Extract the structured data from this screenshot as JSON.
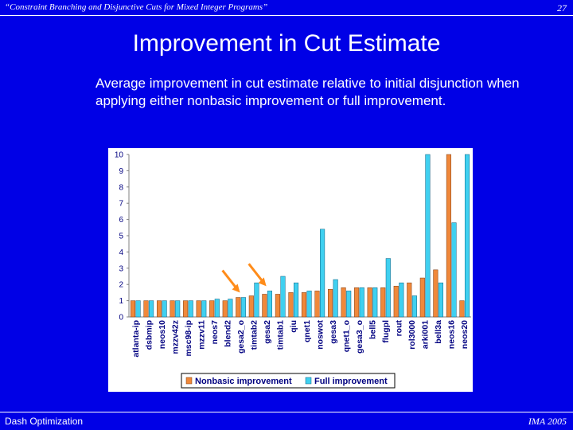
{
  "header": {
    "left": "“Constraint Branching and Disjunctive Cuts for Mixed Integer Programs”",
    "page_number": "27"
  },
  "title": "Improvement in Cut Estimate",
  "caption": "Average improvement in cut estimate relative to initial disjunction when applying either nonbasic improvement or full improvement.",
  "footer": {
    "left": "Dash Optimization",
    "right": "IMA 2005"
  },
  "colors": {
    "background": "#0000e6",
    "nonbasic": "#f0883a",
    "full": "#3fd0f0",
    "arrow": "#ff8c1a"
  },
  "chart_data": {
    "type": "bar",
    "categories": [
      "atlanta-ip",
      "dsbmip",
      "neos10",
      "mzzv42z",
      "msc98-ip",
      "mzzv11",
      "neos7",
      "blend2",
      "gesa2_o",
      "timtab2",
      "gesa2",
      "timtab1",
      "qiu",
      "qnet1",
      "noswot",
      "gesa3",
      "qnet1_o",
      "gesa3_o",
      "bell5",
      "flugpl",
      "rout",
      "rol3000",
      "arki001",
      "bell3a",
      "neos16",
      "neos20"
    ],
    "series": [
      {
        "name": "Nonbasic improvement",
        "values": [
          1,
          1,
          1,
          1,
          1,
          1,
          1,
          1,
          1.2,
          1.3,
          1.4,
          1.4,
          1.5,
          1.5,
          1.6,
          1.7,
          1.8,
          1.8,
          1.8,
          1.8,
          1.9,
          2.1,
          2.4,
          2.9,
          10,
          1
        ]
      },
      {
        "name": "Full improvement",
        "values": [
          1,
          1,
          1,
          1,
          1,
          1,
          1.1,
          1.1,
          1.2,
          2.1,
          1.6,
          2.5,
          2.1,
          1.6,
          5.4,
          2.3,
          1.6,
          1.8,
          1.8,
          3.6,
          2.1,
          1.3,
          10,
          2.1,
          5.8,
          10
        ]
      }
    ],
    "ylim": [
      0,
      10
    ],
    "yticks": [
      "0",
      "1",
      "2",
      "3",
      "4",
      "5",
      "6",
      "7",
      "8",
      "9",
      "10"
    ],
    "annotations": [
      {
        "type": "arrow",
        "target": "gesa2_o"
      },
      {
        "type": "arrow",
        "target": "gesa2"
      }
    ],
    "legend_position": "bottom",
    "grid": false
  }
}
